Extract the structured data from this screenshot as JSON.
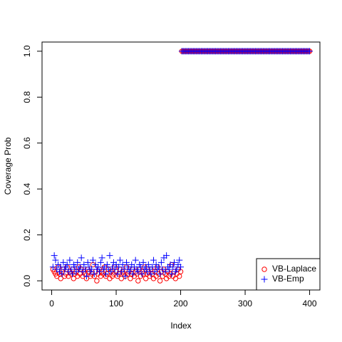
{
  "chart_data": {
    "type": "scatter",
    "x_label": "Index",
    "y_label": "Coverage Prob",
    "xlim": [
      -14.96,
      415.96
    ],
    "ylim": [
      -0.04,
      1.04
    ],
    "xticks": [
      0,
      100,
      200,
      300,
      400
    ],
    "yticks": [
      {
        "value": 0,
        "label": "0.0"
      },
      0.2,
      0.4,
      0.6,
      0.8,
      {
        "value": 1,
        "label": "1.0"
      }
    ],
    "legend": "bottomright",
    "x": [
      2,
      4,
      6,
      8,
      10,
      12,
      14,
      16,
      18,
      20,
      22,
      24,
      26,
      28,
      30,
      32,
      34,
      36,
      38,
      40,
      42,
      44,
      46,
      48,
      50,
      52,
      54,
      56,
      58,
      60,
      62,
      64,
      66,
      68,
      70,
      72,
      74,
      76,
      78,
      80,
      82,
      84,
      86,
      88,
      90,
      92,
      94,
      96,
      98,
      100,
      102,
      104,
      106,
      108,
      110,
      112,
      114,
      116,
      118,
      120,
      122,
      124,
      126,
      128,
      130,
      132,
      134,
      136,
      138,
      140,
      142,
      144,
      146,
      148,
      150,
      152,
      154,
      156,
      158,
      160,
      162,
      164,
      166,
      168,
      170,
      172,
      174,
      176,
      178,
      180,
      182,
      184,
      186,
      188,
      190,
      192,
      194,
      196,
      198,
      200,
      202,
      204,
      206,
      208,
      210,
      212,
      214,
      216,
      218,
      220,
      222,
      224,
      226,
      228,
      230,
      232,
      234,
      236,
      238,
      240,
      242,
      244,
      246,
      248,
      250,
      252,
      254,
      256,
      258,
      260,
      262,
      264,
      266,
      268,
      270,
      272,
      274,
      276,
      278,
      280,
      282,
      284,
      286,
      288,
      290,
      292,
      294,
      296,
      298,
      300,
      302,
      304,
      306,
      308,
      310,
      312,
      314,
      316,
      318,
      320,
      322,
      324,
      326,
      328,
      330,
      332,
      334,
      336,
      338,
      340,
      342,
      344,
      346,
      348,
      350,
      352,
      354,
      356,
      358,
      360,
      362,
      364,
      366,
      368,
      370,
      372,
      374,
      376,
      378,
      380,
      382,
      384,
      386,
      388,
      390,
      392,
      394,
      396,
      398,
      400
    ],
    "series": [
      {
        "name": "VB-Laplace",
        "color": "#ff0000",
        "marker": "circle",
        "values": [
          0.05,
          0.04,
          0.03,
          0.02,
          0.06,
          0.03,
          0.01,
          0.04,
          0.05,
          0.02,
          0.03,
          0.06,
          0.02,
          0.04,
          0.03,
          0.05,
          0.01,
          0.03,
          0.04,
          0.02,
          0.06,
          0.03,
          0.05,
          0.02,
          0.04,
          0.03,
          0.01,
          0.05,
          0.04,
          0.02,
          0.03,
          0.07,
          0.02,
          0.04,
          0.0,
          0.03,
          0.05,
          0.02,
          0.04,
          0.03,
          0.06,
          0.02,
          0.03,
          0.05,
          0.01,
          0.04,
          0.02,
          0.03,
          0.06,
          0.04,
          0.02,
          0.03,
          0.05,
          0.01,
          0.04,
          0.03,
          0.02,
          0.06,
          0.03,
          0.04,
          0.01,
          0.03,
          0.05,
          0.02,
          0.04,
          0.03,
          0.0,
          0.05,
          0.02,
          0.04,
          0.03,
          0.06,
          0.01,
          0.03,
          0.04,
          0.02,
          0.05,
          0.03,
          0.01,
          0.04,
          0.02,
          0.06,
          0.03,
          0.0,
          0.04,
          0.02,
          0.05,
          0.03,
          0.01,
          0.04,
          0.02,
          0.03,
          0.07,
          0.02,
          0.04,
          0.01,
          0.03,
          0.05,
          0.02,
          0.04,
          1,
          1,
          1,
          1,
          1,
          1,
          1,
          1,
          1,
          1,
          1,
          1,
          1,
          1,
          1,
          1,
          1,
          1,
          1,
          1,
          1,
          1,
          1,
          1,
          1,
          1,
          1,
          1,
          1,
          1,
          1,
          1,
          1,
          1,
          1,
          1,
          1,
          1,
          1,
          1,
          1,
          1,
          1,
          1,
          1,
          1,
          1,
          1,
          1,
          1,
          1,
          1,
          1,
          1,
          1,
          1,
          1,
          1,
          1,
          1,
          1,
          1,
          1,
          1,
          1,
          1,
          1,
          1,
          1,
          1,
          1,
          1,
          1,
          1,
          1,
          1,
          1,
          1,
          1,
          1,
          1,
          1,
          1,
          1,
          1,
          1,
          1,
          1,
          1,
          1,
          1,
          1,
          1,
          1,
          1,
          1,
          1,
          1,
          1,
          1
        ]
      },
      {
        "name": "VB-Emp",
        "color": "#0000ff",
        "marker": "plus",
        "values": [
          0.06,
          0.11,
          0.09,
          0.05,
          0.07,
          0.04,
          0.06,
          0.03,
          0.08,
          0.05,
          0.06,
          0.07,
          0.04,
          0.09,
          0.05,
          0.03,
          0.07,
          0.06,
          0.04,
          0.08,
          0.05,
          0.06,
          0.1,
          0.04,
          0.07,
          0.05,
          0.02,
          0.08,
          0.06,
          0.04,
          0.05,
          0.09,
          0.03,
          0.07,
          0.05,
          0.06,
          0.04,
          0.08,
          0.1,
          0.05,
          0.06,
          0.03,
          0.07,
          0.05,
          0.11,
          0.04,
          0.06,
          0.08,
          0.05,
          0.07,
          0.03,
          0.06,
          0.09,
          0.04,
          0.07,
          0.05,
          0.02,
          0.08,
          0.06,
          0.04,
          0.05,
          0.07,
          0.03,
          0.06,
          0.09,
          0.05,
          0.04,
          0.07,
          0.06,
          0.03,
          0.08,
          0.05,
          0.06,
          0.04,
          0.07,
          0.05,
          0.03,
          0.06,
          0.09,
          0.04,
          0.07,
          0.05,
          0.06,
          0.03,
          0.08,
          0.05,
          0.1,
          0.04,
          0.11,
          0.06,
          0.05,
          0.07,
          0.03,
          0.06,
          0.08,
          0.04,
          0.05,
          0.07,
          0.09,
          0.06,
          1,
          1,
          1,
          1,
          1,
          1,
          1,
          1,
          1,
          1,
          1,
          1,
          1,
          1,
          1,
          1,
          1,
          1,
          1,
          1,
          1,
          1,
          1,
          1,
          1,
          1,
          1,
          1,
          1,
          1,
          1,
          1,
          1,
          1,
          1,
          1,
          1,
          1,
          1,
          1,
          1,
          1,
          1,
          1,
          1,
          1,
          1,
          1,
          1,
          1,
          1,
          1,
          1,
          1,
          1,
          1,
          1,
          1,
          1,
          1,
          1,
          1,
          1,
          1,
          1,
          1,
          1,
          1,
          1,
          1,
          1,
          1,
          1,
          1,
          1,
          1,
          1,
          1,
          1,
          1,
          1,
          1,
          1,
          1,
          1,
          1,
          1,
          1,
          1,
          1,
          1,
          1,
          1,
          1,
          1,
          1,
          1,
          1,
          1,
          1
        ]
      }
    ]
  }
}
